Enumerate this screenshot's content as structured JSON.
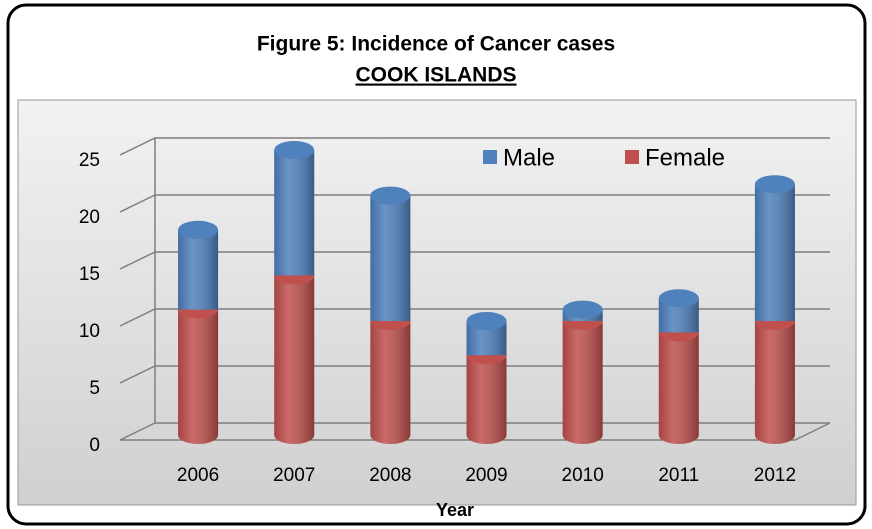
{
  "chart_data": {
    "type": "bar",
    "stacked": true,
    "title": "Figure 5: Incidence of Cancer cases",
    "subtitle": "COOK ISLANDS",
    "x_label": "Year",
    "categories": [
      "2006",
      "2007",
      "2008",
      "2009",
      "2010",
      "2011",
      "2012"
    ],
    "series": [
      {
        "name": "Female",
        "color": "#c0504d",
        "values": [
          11,
          14,
          10,
          7,
          10,
          9,
          10
        ]
      },
      {
        "name": "Male",
        "color": "#4f81bd",
        "values": [
          7,
          11,
          11,
          3,
          1,
          3,
          12
        ]
      }
    ],
    "legend_order": [
      1,
      0
    ],
    "ylim": [
      0,
      25
    ],
    "yticks": [
      0,
      5,
      10,
      15,
      20,
      25
    ],
    "grid": true,
    "legend": "top-right"
  }
}
